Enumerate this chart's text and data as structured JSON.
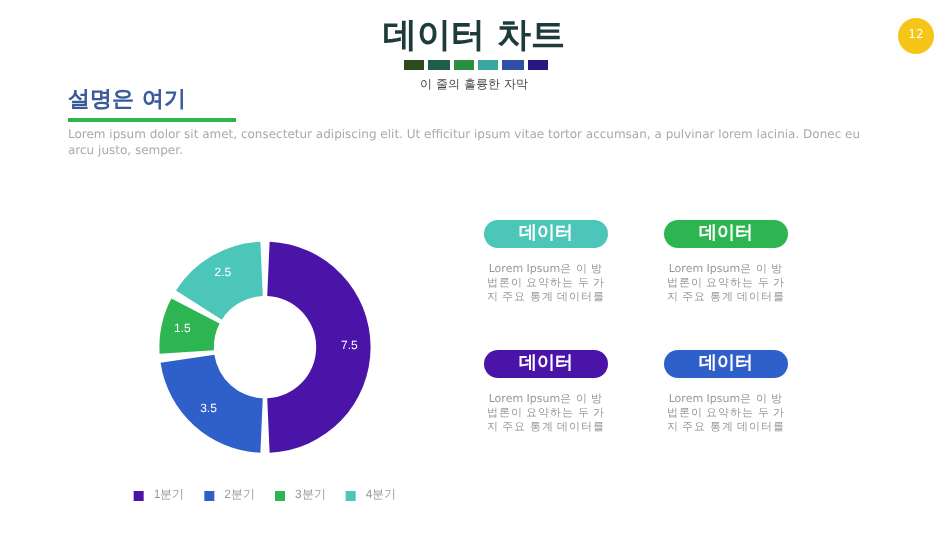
{
  "chart_data": {
    "type": "donut",
    "title": "데이터 차트",
    "subtitle": "이 줄의 훌륭한 자막",
    "categories": [
      "1분기",
      "2분기",
      "3분기",
      "4분기"
    ],
    "values": [
      7.5,
      3.5,
      1.5,
      2.5
    ],
    "colors": [
      "#4a14a8",
      "#2f5fc8",
      "#2db552",
      "#4cc6b8"
    ],
    "data_labels": true,
    "legend": "bottom",
    "annotations": [
      "설명은 여기",
      "Lorem ipsum dolor sit amet, consectetur adipiscing elit. Ut efficitur ipsum vitae tortor accumsan, a pulvinar lorem lacinia. Donec eu arcu justo, semper.",
      "데이터",
      "데이터",
      "데이터",
      "데이터",
      "Lorem Ipsum은 이 방법론이 요약하는 두 가지 주요 통계 데이터를",
      "Lorem Ipsum은 이 방법론이 요약하는 두 가지 주요 통계 데이터를",
      "Lorem Ipsum은 이 방법론이 요약하는 두 가지 주요 통계 데이터를",
      "Lorem Ipsum은 이 방법론이 요약하는 두 가지 주요 통계 데이터를",
      "12"
    ]
  }
}
